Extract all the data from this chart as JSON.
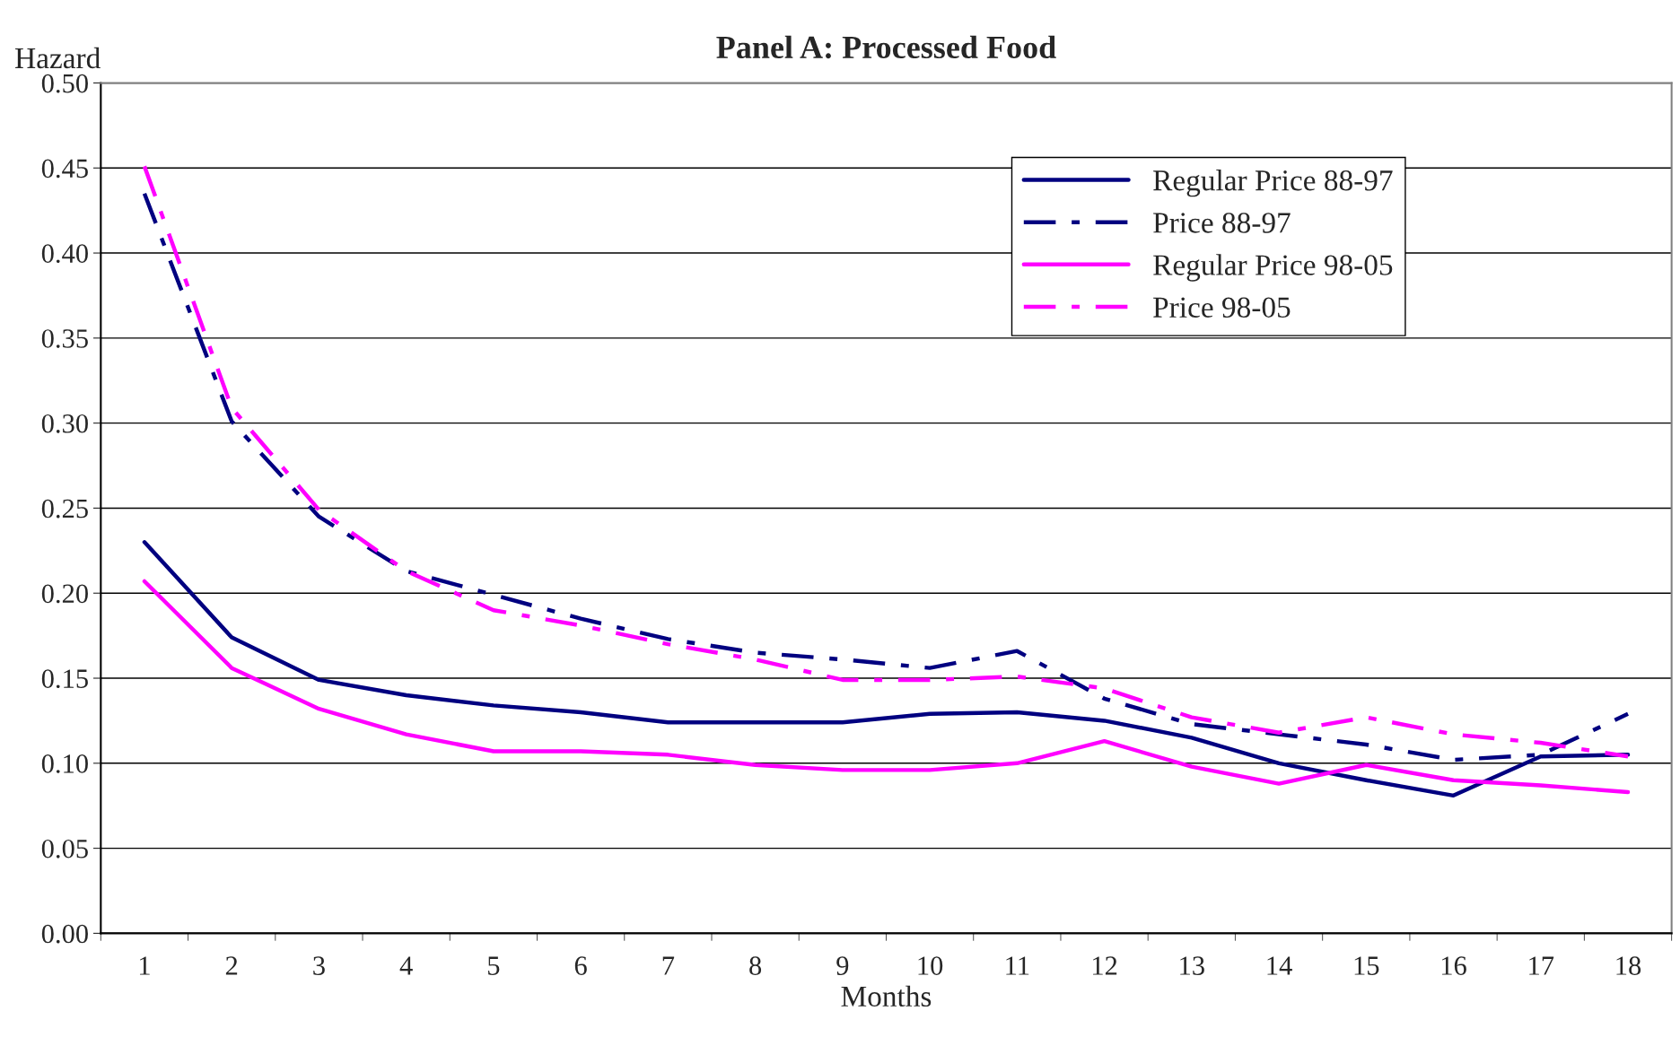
{
  "chart_data": {
    "type": "line",
    "title": "Panel A: Processed Food",
    "xlabel": "Months",
    "ylabel": "Hazard",
    "categories": [
      "1",
      "2",
      "3",
      "4",
      "5",
      "6",
      "7",
      "8",
      "9",
      "10",
      "11",
      "12",
      "13",
      "14",
      "15",
      "16",
      "17",
      "18"
    ],
    "series": [
      {
        "name": "Regular Price 88-97",
        "color": "#000080",
        "line_style": "solid",
        "values": [
          0.23,
          0.174,
          0.149,
          0.14,
          0.134,
          0.13,
          0.124,
          0.124,
          0.124,
          0.129,
          0.13,
          0.125,
          0.115,
          0.1,
          0.09,
          0.081,
          0.104,
          0.105
        ]
      },
      {
        "name": "Price 88-97",
        "color": "#000080",
        "line_style": "dashed",
        "values": [
          0.435,
          0.301,
          0.245,
          0.213,
          0.199,
          0.185,
          0.173,
          0.165,
          0.161,
          0.156,
          0.166,
          0.138,
          0.123,
          0.117,
          0.111,
          0.102,
          0.105,
          0.129
        ]
      },
      {
        "name": "Regular Price 98-05",
        "color": "#ff00ff",
        "line_style": "solid",
        "values": [
          0.207,
          0.156,
          0.132,
          0.117,
          0.107,
          0.107,
          0.105,
          0.099,
          0.096,
          0.096,
          0.1,
          0.113,
          0.098,
          0.088,
          0.099,
          0.09,
          0.087,
          0.083
        ]
      },
      {
        "name": "Price 98-05",
        "color": "#ff00ff",
        "line_style": "dashed",
        "values": [
          0.451,
          0.309,
          0.249,
          0.213,
          0.19,
          0.181,
          0.17,
          0.161,
          0.149,
          0.149,
          0.151,
          0.144,
          0.127,
          0.118,
          0.127,
          0.117,
          0.112,
          0.104
        ]
      }
    ],
    "ylim": [
      0,
      0.5
    ],
    "yticks": [
      {
        "value": 0,
        "label": "0.00"
      },
      {
        "value": 0.05,
        "label": "0.05"
      },
      {
        "value": 0.1,
        "label": "0.10"
      },
      {
        "value": 0.15,
        "label": "0.15"
      },
      {
        "value": 0.2,
        "label": "0.20"
      },
      {
        "value": 0.25,
        "label": "0.25"
      },
      {
        "value": 0.3,
        "label": "0.30"
      },
      {
        "value": 0.35,
        "label": "0.35"
      },
      {
        "value": 0.4,
        "label": "0.40"
      },
      {
        "value": 0.45,
        "label": "0.45"
      },
      {
        "value": 0.5,
        "label": "0.50"
      }
    ],
    "grid": "y",
    "legend": "top right",
    "marker": "none"
  }
}
